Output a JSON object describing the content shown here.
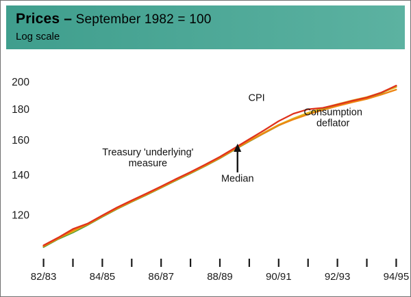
{
  "header": {
    "title_bold": "Prices –",
    "title_rest": "September 1982 = 100",
    "subtitle": "Log scale",
    "banner_color": "#3f9e8d",
    "banner_color_right": "#5cb2a1"
  },
  "chart_data": {
    "type": "line",
    "title": "Prices – September 1982 = 100",
    "subtitle": "Log scale",
    "log_scale": true,
    "xlim": [
      -0.2,
      12.2
    ],
    "ylim": [
      103,
      208
    ],
    "y_ticks": [
      120,
      140,
      160,
      180,
      200
    ],
    "x_ticks": [
      0,
      1,
      2,
      3,
      4,
      5,
      6,
      7,
      8,
      9,
      10,
      11,
      12
    ],
    "x_tick_labels": {
      "0": "82/83",
      "2": "84/85",
      "4": "86/87",
      "6": "88/89",
      "8": "90/91",
      "10": "92/93",
      "12": "94/95"
    },
    "x": [
      0,
      0.5,
      1,
      1.5,
      2,
      2.5,
      3,
      3.5,
      4,
      4.5,
      5,
      5.5,
      6,
      6.5,
      7,
      7.5,
      8,
      8.5,
      9,
      9.5,
      10,
      10.5,
      11,
      11.5,
      12
    ],
    "series": [
      {
        "name": "Treasury 'underlying' measure",
        "color": "#4e9b31",
        "values": [
          106.3,
          109.6,
          112.4,
          115.7,
          119.4,
          123.0,
          126.4,
          129.8,
          133.4,
          137.2,
          141.0,
          145.0,
          149.4,
          154.4,
          159.4,
          164.4,
          169.4,
          173.6,
          177.4,
          180.6,
          183.4,
          186.0,
          188.4,
          191.8,
          196.8
        ]
      },
      {
        "name": "Median",
        "color": "#dcb61e",
        "values": [
          106.8,
          110.0,
          112.8,
          116.1,
          119.8,
          123.4,
          126.8,
          130.2,
          133.8,
          137.6,
          141.4,
          145.5,
          149.8,
          154.8,
          159.8,
          164.8,
          169.8,
          174.0,
          177.8,
          181.0,
          183.8,
          186.4,
          188.8,
          192.1,
          196.2
        ]
      },
      {
        "name": "Consumption deflator",
        "color": "#ee8511",
        "values": [
          106.6,
          109.8,
          113.3,
          115.9,
          119.6,
          123.2,
          126.6,
          130.0,
          133.6,
          137.4,
          141.2,
          145.2,
          149.6,
          154.6,
          159.6,
          164.5,
          169.5,
          173.3,
          176.7,
          179.7,
          182.5,
          185.1,
          187.5,
          190.7,
          194.3
        ]
      },
      {
        "name": "CPI",
        "color": "#df321c",
        "values": [
          107.0,
          110.2,
          113.9,
          116.3,
          120.0,
          123.7,
          127.1,
          130.5,
          134.1,
          137.9,
          141.7,
          145.8,
          150.2,
          155.3,
          160.7,
          166.2,
          172.2,
          177.2,
          180.2,
          181.2,
          183.5,
          186.1,
          188.5,
          192.2,
          197.3
        ]
      }
    ],
    "annotations": [
      {
        "id": "cpi-label",
        "lines": [
          "CPI"
        ],
        "x": 7.25,
        "y": 186
      },
      {
        "id": "consumption-deflator-label",
        "lines": [
          "Consumption",
          "deflator"
        ],
        "x": 9.85,
        "y": 176
      },
      {
        "id": "treasury-label",
        "lines": [
          "Treasury 'underlying'",
          "measure"
        ],
        "x": 3.55,
        "y": 151
      },
      {
        "id": "median-label",
        "lines": [
          "Median"
        ],
        "x": 6.6,
        "y": 136.5
      }
    ],
    "arrow": {
      "x": 6.6,
      "y_from": 141.5,
      "y_to": 158
    }
  }
}
